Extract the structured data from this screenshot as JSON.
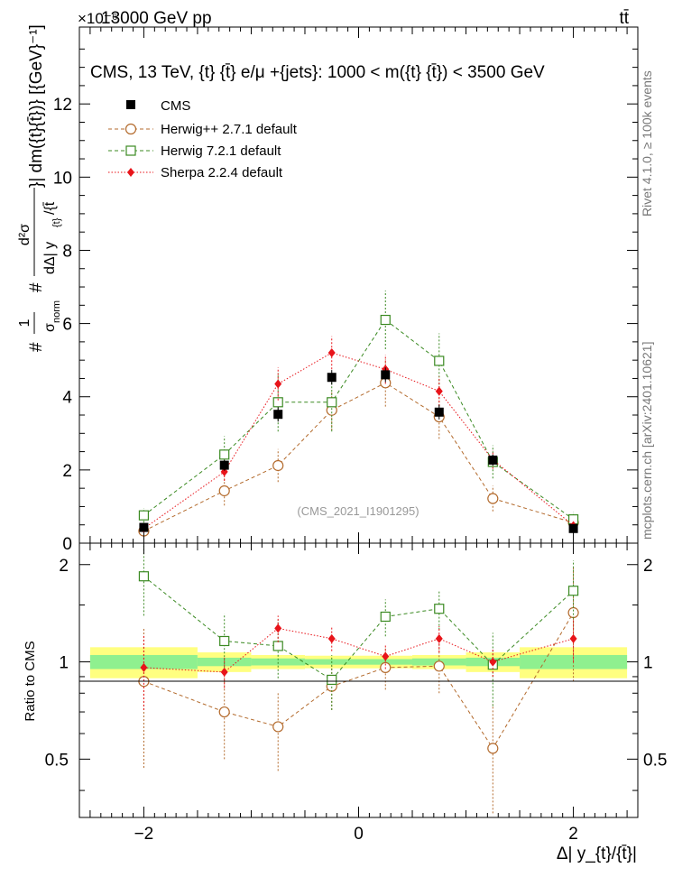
{
  "header": {
    "left_label": "13000 GeV pp",
    "right_label": "tt̄",
    "exponent_label": "×10⁻⁶"
  },
  "side_labels": {
    "rivet": "Rivet 4.1.0, ≥ 100k events",
    "mcplots": "mcplots.cern.ch [arXiv:2401.10621]"
  },
  "watermark": "(CMS_2021_I1901295)",
  "chart_data": [
    {
      "type": "scatter",
      "panel": "main",
      "title": "CMS, 13 TeV, {t} {t̄} e/μ +{jets}: 1000 < m({t} {t̄}) < 3500 GeV",
      "xlabel": "Δ| y_{t}/{t̄}|",
      "ylabel": "#1/σ_norm # d²σ / dΔ|y_{t}/{t̄}| dm({t}{t̄})} [{GeV}⁻¹]",
      "ylabel_parts": {
        "left": "#",
        "one": "1",
        "sigma_norm": "σ",
        "norm_sub": "norm",
        "hash": "#",
        "num": "d²σ",
        "den": "dΔ| y",
        "den_sub": "{t}",
        "den_tail": "/{t̄",
        "right": "}| dm({t}{t̄})} [{GeV}⁻¹]"
      },
      "xlim": [
        -2.6,
        2.6
      ],
      "ylim": [
        0,
        14.1
      ],
      "yticks": [
        0,
        2,
        4,
        6,
        8,
        10,
        12
      ],
      "ytick_labels": [
        "0",
        "2",
        "4",
        "6",
        "8",
        "10",
        "12"
      ],
      "x": [
        -2.0,
        -1.25,
        -0.75,
        -0.25,
        0.25,
        0.75,
        1.25,
        2.0
      ],
      "series": [
        {
          "name": "CMS",
          "marker": "square-filled",
          "color": "#000000",
          "values": [
            0.43,
            2.13,
            3.52,
            4.53,
            4.6,
            3.58,
            2.27,
            0.4
          ],
          "err": [
            0.05,
            0.15,
            0.2,
            0.2,
            0.2,
            0.2,
            0.15,
            0.05
          ]
        },
        {
          "name": "Herwig++ 2.7.1 default",
          "marker": "circle-open",
          "color": "#b36a2c",
          "values": [
            0.33,
            1.43,
            2.12,
            3.63,
            4.38,
            3.45,
            1.22,
            0.56
          ],
          "err": [
            0.15,
            0.4,
            0.45,
            0.55,
            0.65,
            0.6,
            0.35,
            0.2
          ]
        },
        {
          "name": "Herwig 7.2.1 default",
          "marker": "square-open",
          "color": "#3b8a22",
          "values": [
            0.76,
            2.42,
            3.85,
            3.85,
            6.1,
            4.98,
            2.22,
            0.65
          ],
          "err": [
            0.2,
            0.5,
            0.8,
            0.8,
            0.8,
            0.75,
            0.45,
            0.2
          ]
        },
        {
          "name": "Sherpa 2.2.4 default",
          "marker": "diamond-filled",
          "color": "#e8141a",
          "values": [
            0.4,
            1.95,
            4.35,
            5.2,
            4.75,
            4.15,
            2.28,
            0.48
          ],
          "err": [
            0.1,
            0.25,
            0.45,
            0.45,
            0.4,
            0.4,
            0.25,
            0.08
          ]
        }
      ]
    },
    {
      "type": "scatter",
      "panel": "ratio",
      "ylabel": "Ratio to CMS",
      "xlabel": "Δ| y_{t}/{t̄}|",
      "xlim": [
        -2.6,
        2.6
      ],
      "ylim": [
        0.33,
        2.33
      ],
      "xticks": [
        -2,
        0,
        2
      ],
      "xtick_labels": [
        "−2",
        "0",
        "2"
      ],
      "yticks": [
        0.5,
        1,
        2
      ],
      "ytick_labels": [
        "0.5",
        "1",
        "2"
      ],
      "x": [
        -2.0,
        -1.25,
        -0.75,
        -0.25,
        0.25,
        0.75,
        1.25,
        2.0
      ],
      "band_edges": [
        -2.5,
        -1.5,
        -1.0,
        -0.5,
        0.0,
        0.5,
        1.0,
        1.5,
        2.5
      ],
      "band_stat": [
        0.05,
        0.03,
        0.025,
        0.02,
        0.02,
        0.025,
        0.03,
        0.05
      ],
      "band_total": [
        0.11,
        0.07,
        0.05,
        0.045,
        0.045,
        0.05,
        0.07,
        0.11
      ],
      "series": [
        {
          "name": "Herwig++ 2.7.1 default",
          "marker": "circle-open",
          "color": "#b36a2c",
          "values": [
            0.87,
            0.7,
            0.63,
            0.84,
            0.96,
            0.97,
            0.54,
            1.42
          ],
          "err": [
            0.4,
            0.2,
            0.17,
            0.13,
            0.14,
            0.17,
            0.2,
            0.55
          ]
        },
        {
          "name": "Herwig 7.2.1 default",
          "marker": "square-open",
          "color": "#3b8a22",
          "values": [
            1.84,
            1.16,
            1.12,
            0.88,
            1.38,
            1.46,
            0.98,
            1.66
          ],
          "err": [
            0.45,
            0.25,
            0.23,
            0.17,
            0.18,
            0.2,
            0.25,
            0.4
          ]
        },
        {
          "name": "Sherpa 2.2.4 default",
          "marker": "diamond-filled",
          "color": "#e8141a",
          "values": [
            0.96,
            0.93,
            1.27,
            1.18,
            1.04,
            1.18,
            1.0,
            1.18
          ],
          "err": [
            0.25,
            0.1,
            0.12,
            0.1,
            0.09,
            0.11,
            0.1,
            0.18
          ]
        }
      ]
    }
  ]
}
